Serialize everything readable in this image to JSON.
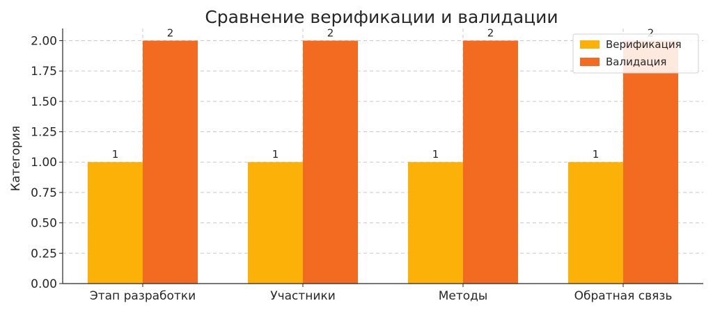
{
  "chart_data": {
    "type": "bar",
    "title": "Сравнение верификации и валидации",
    "xlabel": "",
    "ylabel": "Категория",
    "categories": [
      "Этап разработки",
      "Участники",
      "Методы",
      "Обратная связь"
    ],
    "series": [
      {
        "name": "Верификация",
        "values": [
          1,
          1,
          1,
          1
        ],
        "color": "#FBB107"
      },
      {
        "name": "Валидация",
        "values": [
          2,
          2,
          2,
          2
        ],
        "color": "#F26B21"
      }
    ],
    "ylim": [
      0,
      2.1
    ],
    "yticks": [
      "0.00",
      "0.25",
      "0.50",
      "0.75",
      "1.00",
      "1.25",
      "1.50",
      "1.75",
      "2.00"
    ],
    "data_labels": true,
    "grid": true,
    "legend_position": "top-right"
  }
}
